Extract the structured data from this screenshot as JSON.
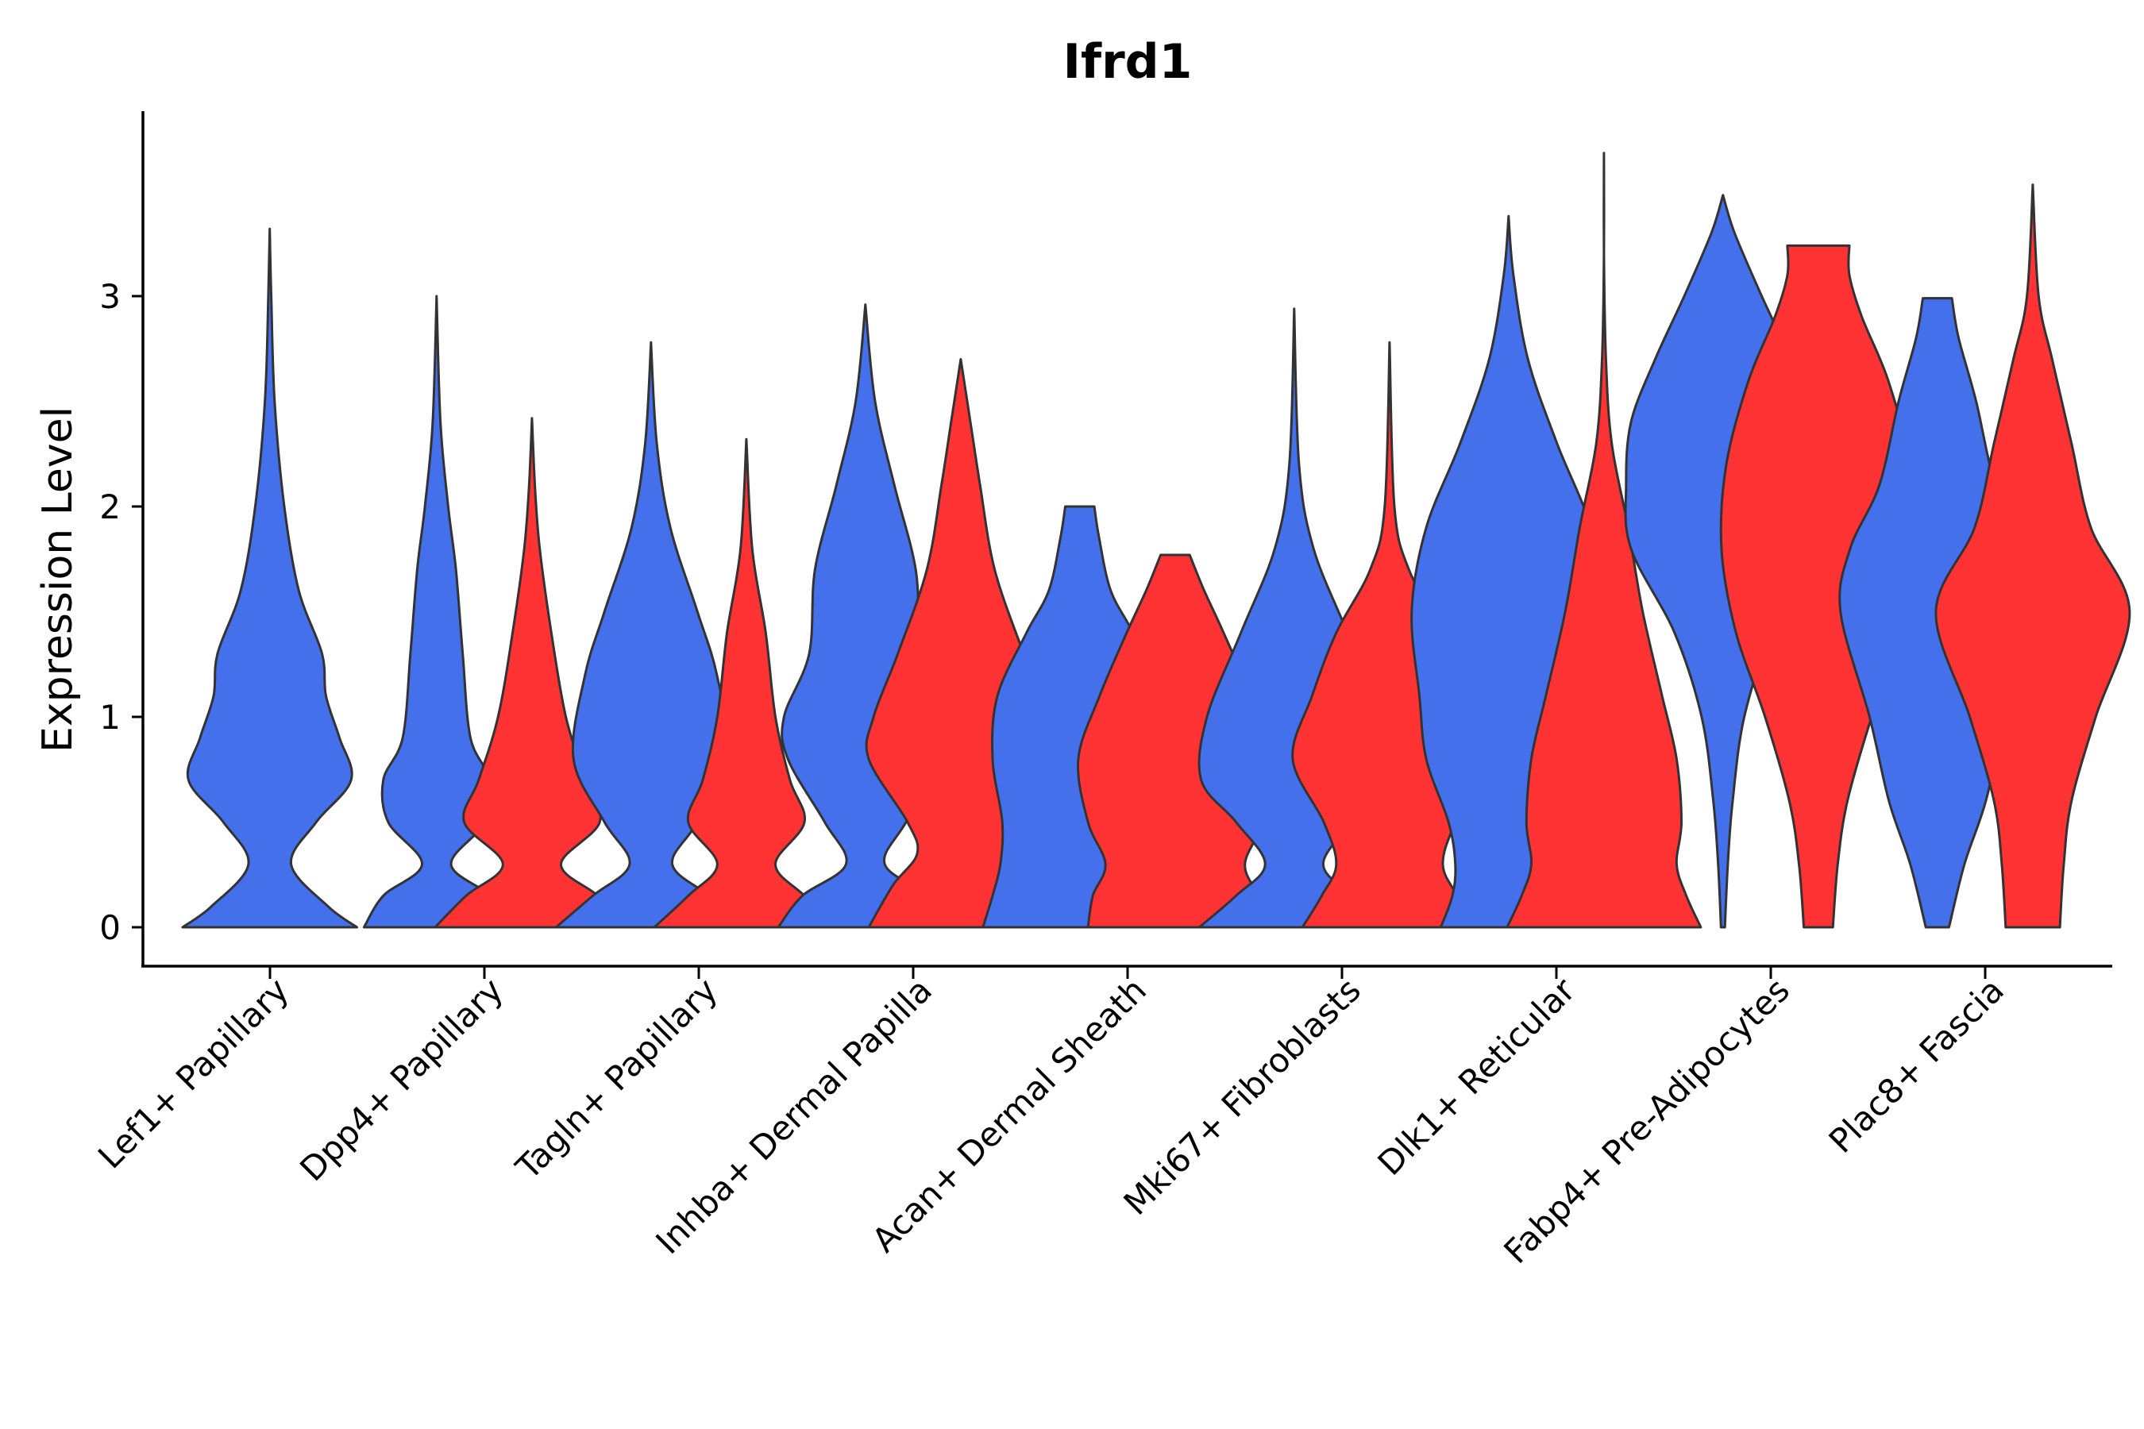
{
  "chart_data": {
    "type": "violin",
    "title": "Ifrd1",
    "xlabel": "",
    "ylabel": "Expression Level",
    "ylim": [
      -0.18,
      3.88
    ],
    "yticks": [
      0,
      1,
      2,
      3
    ],
    "colors": {
      "group_a": "#4470EC",
      "group_b": "#FF3333",
      "outline": "#333333"
    },
    "categories": [
      "Lef1+ Papillary",
      "Dpp4+ Papillary",
      "Tagln+ Papillary",
      "Inhba+ Dermal Papilla",
      "Acan+ Dermal Sheath",
      "Mki67+ Fibroblasts",
      "Dlk1+ Reticular",
      "Fabp4+ Pre-Adipocytes",
      "Plac8+ Fascia"
    ],
    "violins": [
      {
        "category": "Lef1+ Papillary",
        "group": "a",
        "center": 0.999,
        "ymax": 3.32,
        "profile": [
          [
            0,
            0.9
          ],
          [
            0.1,
            0.6
          ],
          [
            0.3,
            0.22
          ],
          [
            0.5,
            0.48
          ],
          [
            0.7,
            0.84
          ],
          [
            0.9,
            0.72
          ],
          [
            1.1,
            0.58
          ],
          [
            1.3,
            0.54
          ],
          [
            1.6,
            0.3
          ],
          [
            2.0,
            0.15
          ],
          [
            2.5,
            0.05
          ],
          [
            3.0,
            0.015
          ],
          [
            3.32,
            0
          ]
        ]
      },
      {
        "category": "Dpp4+ Papillary",
        "group": "a",
        "center": 1.777,
        "ymax": 3.0,
        "profile": [
          [
            0,
            0.75
          ],
          [
            0.15,
            0.55
          ],
          [
            0.3,
            0.15
          ],
          [
            0.5,
            0.5
          ],
          [
            0.7,
            0.55
          ],
          [
            0.9,
            0.35
          ],
          [
            1.3,
            0.27
          ],
          [
            1.7,
            0.2
          ],
          [
            2.0,
            0.12
          ],
          [
            2.4,
            0.04
          ],
          [
            3.0,
            0
          ]
        ]
      },
      {
        "category": "Dpp4+ Papillary",
        "group": "b",
        "center": 2.222,
        "ymax": 2.42,
        "profile": [
          [
            0,
            1.0
          ],
          [
            0.15,
            0.68
          ],
          [
            0.3,
            0.3
          ],
          [
            0.5,
            0.7
          ],
          [
            0.7,
            0.55
          ],
          [
            1.0,
            0.35
          ],
          [
            1.4,
            0.2
          ],
          [
            1.8,
            0.08
          ],
          [
            2.1,
            0.03
          ],
          [
            2.42,
            0
          ]
        ]
      },
      {
        "category": "Tagln+ Papillary",
        "group": "a",
        "center": 2.777,
        "ymax": 2.78,
        "profile": [
          [
            0,
            0.98
          ],
          [
            0.15,
            0.6
          ],
          [
            0.3,
            0.22
          ],
          [
            0.5,
            0.48
          ],
          [
            0.8,
            0.8
          ],
          [
            1.2,
            0.68
          ],
          [
            1.5,
            0.48
          ],
          [
            1.9,
            0.2
          ],
          [
            2.3,
            0.06
          ],
          [
            2.78,
            0
          ]
        ]
      },
      {
        "category": "Tagln+ Papillary",
        "group": "b",
        "center": 3.222,
        "ymax": 2.32,
        "profile": [
          [
            0,
            0.95
          ],
          [
            0.15,
            0.6
          ],
          [
            0.3,
            0.3
          ],
          [
            0.5,
            0.6
          ],
          [
            0.7,
            0.45
          ],
          [
            1.0,
            0.3
          ],
          [
            1.4,
            0.2
          ],
          [
            1.8,
            0.06
          ],
          [
            2.32,
            0
          ]
        ]
      },
      {
        "category": "Inhba+ Dermal Papilla",
        "group": "a",
        "center": 3.777,
        "ymax": 2.96,
        "profile": [
          [
            0,
            0.9
          ],
          [
            0.15,
            0.65
          ],
          [
            0.3,
            0.2
          ],
          [
            0.5,
            0.42
          ],
          [
            0.8,
            0.8
          ],
          [
            1.0,
            0.84
          ],
          [
            1.3,
            0.58
          ],
          [
            1.7,
            0.52
          ],
          [
            2.1,
            0.3
          ],
          [
            2.5,
            0.1
          ],
          [
            2.96,
            0
          ]
        ]
      },
      {
        "category": "Inhba+ Dermal Papilla",
        "group": "b",
        "center": 4.222,
        "ymax": 2.7,
        "profile": [
          [
            0,
            0.95
          ],
          [
            0.2,
            0.7
          ],
          [
            0.35,
            0.45
          ],
          [
            0.5,
            0.55
          ],
          [
            0.8,
            0.95
          ],
          [
            1.0,
            0.9
          ],
          [
            1.3,
            0.65
          ],
          [
            1.7,
            0.35
          ],
          [
            2.1,
            0.2
          ],
          [
            2.4,
            0.1
          ],
          [
            2.7,
            0
          ]
        ]
      },
      {
        "category": "Acan+ Dermal Sheath",
        "group": "a",
        "center": 4.777,
        "ymax": 2.0,
        "profile": [
          [
            0,
            1.0
          ],
          [
            0.15,
            0.9
          ],
          [
            0.3,
            0.82
          ],
          [
            0.5,
            0.8
          ],
          [
            0.8,
            0.9
          ],
          [
            1.1,
            0.85
          ],
          [
            1.4,
            0.55
          ],
          [
            1.6,
            0.32
          ],
          [
            1.85,
            0.2
          ],
          [
            2.0,
            0.15
          ]
        ]
      },
      {
        "category": "Acan+ Dermal Sheath",
        "group": "b",
        "center": 5.222,
        "ymax": 1.77,
        "profile": [
          [
            0,
            0.9
          ],
          [
            0.15,
            0.85
          ],
          [
            0.3,
            0.72
          ],
          [
            0.5,
            0.9
          ],
          [
            0.8,
            1.0
          ],
          [
            1.1,
            0.78
          ],
          [
            1.4,
            0.5
          ],
          [
            1.6,
            0.3
          ],
          [
            1.77,
            0.15
          ]
        ]
      },
      {
        "category": "Mki67+ Fibroblasts",
        "group": "a",
        "center": 5.777,
        "ymax": 2.94,
        "profile": [
          [
            0,
            0.98
          ],
          [
            0.15,
            0.6
          ],
          [
            0.3,
            0.3
          ],
          [
            0.5,
            0.6
          ],
          [
            0.7,
            0.96
          ],
          [
            1.0,
            0.9
          ],
          [
            1.4,
            0.55
          ],
          [
            1.8,
            0.2
          ],
          [
            2.2,
            0.05
          ],
          [
            2.94,
            0
          ]
        ]
      },
      {
        "category": "Mki67+ Fibroblasts",
        "group": "b",
        "center": 6.222,
        "ymax": 2.78,
        "profile": [
          [
            0,
            0.9
          ],
          [
            0.15,
            0.7
          ],
          [
            0.3,
            0.55
          ],
          [
            0.5,
            0.68
          ],
          [
            0.8,
            1.0
          ],
          [
            1.1,
            0.8
          ],
          [
            1.4,
            0.55
          ],
          [
            1.7,
            0.2
          ],
          [
            2.0,
            0.05
          ],
          [
            2.78,
            0
          ]
        ]
      },
      {
        "category": "Dlk1+ Reticular",
        "group": "a",
        "center": 6.777,
        "ymax": 3.38,
        "profile": [
          [
            0,
            0.7
          ],
          [
            0.15,
            0.58
          ],
          [
            0.3,
            0.55
          ],
          [
            0.5,
            0.62
          ],
          [
            0.8,
            0.85
          ],
          [
            1.1,
            0.92
          ],
          [
            1.5,
            1.0
          ],
          [
            1.9,
            0.85
          ],
          [
            2.3,
            0.5
          ],
          [
            2.7,
            0.2
          ],
          [
            3.1,
            0.05
          ],
          [
            3.38,
            0
          ]
        ]
      },
      {
        "category": "Dlk1+ Reticular",
        "group": "b",
        "center": 7.222,
        "ymax": 3.68,
        "profile": [
          [
            0,
            1.0
          ],
          [
            0.15,
            0.85
          ],
          [
            0.3,
            0.75
          ],
          [
            0.5,
            0.8
          ],
          [
            0.8,
            0.75
          ],
          [
            1.1,
            0.6
          ],
          [
            1.5,
            0.4
          ],
          [
            1.9,
            0.25
          ],
          [
            2.3,
            0.08
          ],
          [
            2.7,
            0.02
          ],
          [
            3.2,
            0
          ],
          [
            3.68,
            0
          ]
        ]
      },
      {
        "category": "Fabp4+ Pre-Adipocytes",
        "group": "a",
        "center": 7.777,
        "ymax": 3.48,
        "profile": [
          [
            0,
            0.02
          ],
          [
            0.3,
            0.05
          ],
          [
            0.6,
            0.1
          ],
          [
            1.0,
            0.22
          ],
          [
            1.4,
            0.5
          ],
          [
            1.8,
            0.95
          ],
          [
            2.1,
            1.0
          ],
          [
            2.4,
            0.95
          ],
          [
            2.7,
            0.7
          ],
          [
            3.0,
            0.4
          ],
          [
            3.3,
            0.12
          ],
          [
            3.48,
            0
          ]
        ]
      },
      {
        "category": "Fabp4+ Pre-Adipocytes",
        "group": "b",
        "center": 8.222,
        "ymax": 3.24,
        "profile": [
          [
            0,
            0.15
          ],
          [
            0.3,
            0.2
          ],
          [
            0.6,
            0.3
          ],
          [
            1.0,
            0.55
          ],
          [
            1.4,
            0.85
          ],
          [
            1.8,
            1.0
          ],
          [
            2.2,
            0.95
          ],
          [
            2.6,
            0.72
          ],
          [
            2.9,
            0.45
          ],
          [
            3.1,
            0.32
          ],
          [
            3.24,
            0.32
          ]
        ]
      },
      {
        "category": "Plac8+ Fascia",
        "group": "a",
        "center": 8.777,
        "ymax": 2.99,
        "profile": [
          [
            0,
            0.12
          ],
          [
            0.3,
            0.28
          ],
          [
            0.6,
            0.5
          ],
          [
            1.0,
            0.7
          ],
          [
            1.5,
            1.0
          ],
          [
            1.8,
            0.9
          ],
          [
            2.1,
            0.6
          ],
          [
            2.5,
            0.4
          ],
          [
            2.8,
            0.22
          ],
          [
            2.99,
            0.15
          ]
        ]
      },
      {
        "category": "Plac8+ Fascia",
        "group": "b",
        "center": 9.222,
        "ymax": 3.53,
        "profile": [
          [
            0,
            0.28
          ],
          [
            0.3,
            0.32
          ],
          [
            0.6,
            0.4
          ],
          [
            1.0,
            0.65
          ],
          [
            1.5,
            1.0
          ],
          [
            1.9,
            0.6
          ],
          [
            2.3,
            0.4
          ],
          [
            2.7,
            0.2
          ],
          [
            3.0,
            0.06
          ],
          [
            3.53,
            0
          ]
        ]
      }
    ]
  }
}
